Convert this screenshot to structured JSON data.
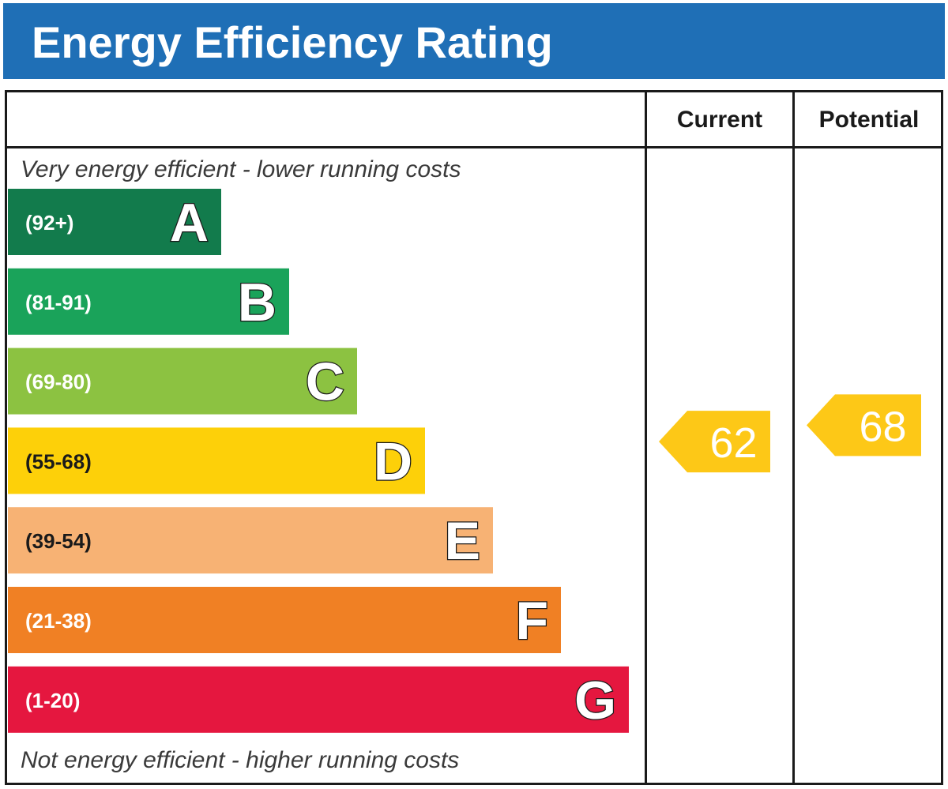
{
  "title": "Energy Efficiency Rating",
  "columns": {
    "current": "Current",
    "potential": "Potential"
  },
  "captions": {
    "top": "Very energy efficient - lower running costs",
    "bottom": "Not energy efficient - higher running costs"
  },
  "chart_data": {
    "type": "bar",
    "title": "Energy Efficiency Rating",
    "categories": [
      "A",
      "B",
      "C",
      "D",
      "E",
      "F",
      "G"
    ],
    "bands": [
      {
        "letter": "A",
        "range": "(92+)",
        "color": "#127b4c"
      },
      {
        "letter": "B",
        "range": "(81-91)",
        "color": "#1aa35a"
      },
      {
        "letter": "C",
        "range": "(69-80)",
        "color": "#8cc241"
      },
      {
        "letter": "D",
        "range": "(55-68)",
        "color": "#fdd009"
      },
      {
        "letter": "E",
        "range": "(39-54)",
        "color": "#f7b274"
      },
      {
        "letter": "F",
        "range": "(21-38)",
        "color": "#f08024"
      },
      {
        "letter": "G",
        "range": "(1-20)",
        "color": "#e5173f"
      }
    ],
    "current": {
      "label": "Current",
      "value": 62,
      "band": "D",
      "color": "#fdc817"
    },
    "potential": {
      "label": "Potential",
      "value": 68,
      "band": "D",
      "color": "#fdc817"
    }
  }
}
